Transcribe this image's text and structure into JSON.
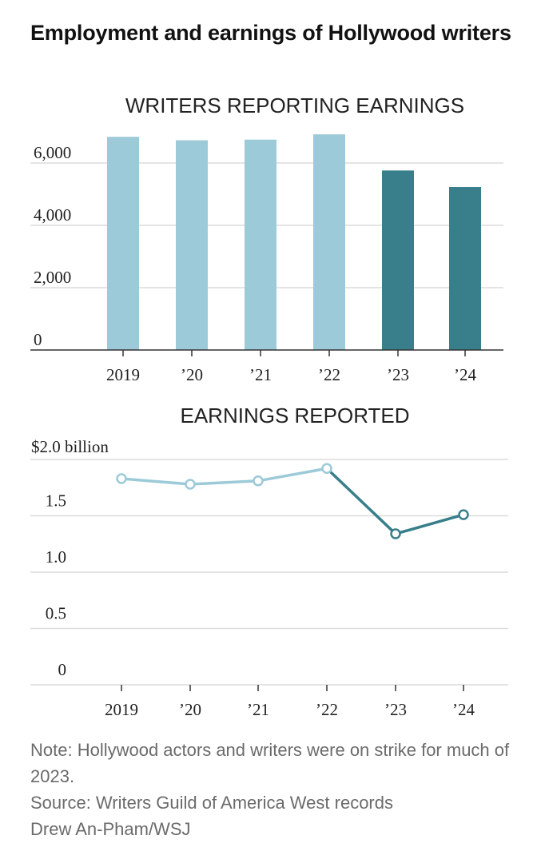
{
  "headline": "Employment and earnings of Hollywood writers",
  "colors": {
    "pre_strike": "#9ccad8",
    "strike": "#387e8b"
  },
  "chart_data": [
    {
      "type": "bar",
      "title": "WRITERS REPORTING EARNINGS",
      "categories": [
        "2019",
        "’20",
        "’21",
        "’22",
        "’23",
        "’24"
      ],
      "values": [
        6840,
        6730,
        6750,
        6920,
        5760,
        5230
      ],
      "highlight_from_index": 4,
      "ylim": [
        0,
        7000
      ],
      "yticks": [
        0,
        2000,
        4000,
        6000
      ],
      "ytick_labels": [
        "0",
        "2,000",
        "4,000",
        "6,000"
      ],
      "xlabel": "",
      "ylabel": "",
      "grid": true
    },
    {
      "type": "line",
      "title": "EARNINGS REPORTED",
      "categories": [
        "2019",
        "’20",
        "’21",
        "’22",
        "’23",
        "’24"
      ],
      "values": [
        1.83,
        1.78,
        1.81,
        1.92,
        1.34,
        1.51
      ],
      "highlight_from_index": 3,
      "ylim": [
        0,
        2.0
      ],
      "yticks": [
        0,
        0.5,
        1.0,
        1.5,
        2.0
      ],
      "ytick_labels": [
        "0",
        "0.5",
        "1.0",
        "1.5",
        "$2.0 billion"
      ],
      "xlabel": "",
      "ylabel": "",
      "grid": true
    }
  ],
  "footer": {
    "note": "Note: Hollywood actors and writers were on strike for much of 2023.",
    "source": "Source: Writers Guild of America West records",
    "credit": "Drew An-Pham/WSJ"
  }
}
